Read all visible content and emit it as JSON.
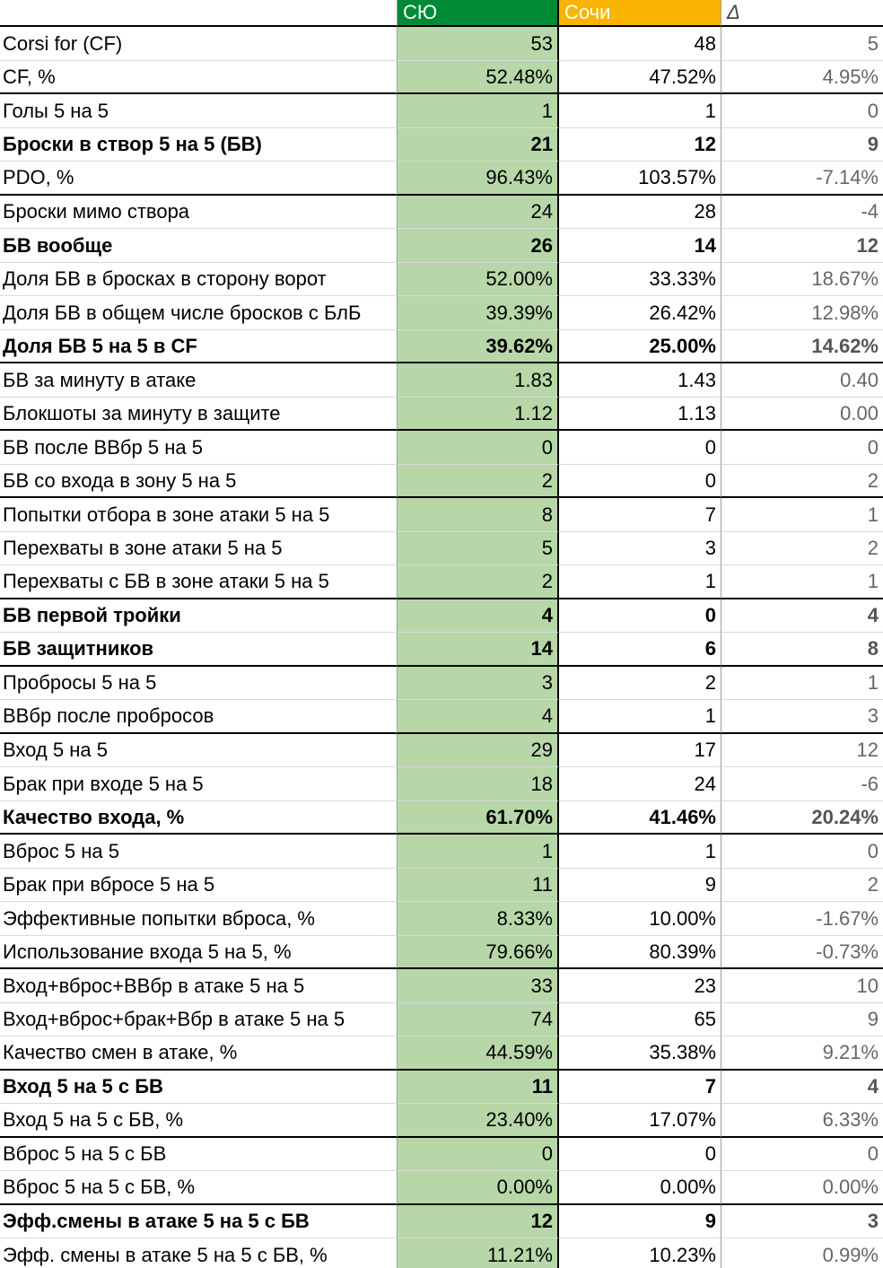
{
  "header": {
    "blank": "",
    "team1": "СЮ",
    "team2": "Сочи",
    "delta": "Δ"
  },
  "rows": [
    {
      "label": "Corsi for (CF)",
      "v1": "53",
      "v2": "48",
      "d": "5",
      "bold": false,
      "sep": false
    },
    {
      "label": "CF, %",
      "v1": "52.48%",
      "v2": "47.52%",
      "d": "4.95%",
      "bold": false,
      "sep": true
    },
    {
      "label": "Голы 5 на 5",
      "v1": "1",
      "v2": "1",
      "d": "0",
      "bold": false,
      "sep": false
    },
    {
      "label": "Броски в створ 5 на 5 (БВ)",
      "v1": "21",
      "v2": "12",
      "d": "9",
      "bold": true,
      "sep": false
    },
    {
      "label": "PDO, %",
      "v1": "96.43%",
      "v2": "103.57%",
      "d": "-7.14%",
      "bold": false,
      "sep": true
    },
    {
      "label": "Броски мимо створа",
      "v1": "24",
      "v2": "28",
      "d": "-4",
      "bold": false,
      "sep": false
    },
    {
      "label": "БВ вообще",
      "v1": "26",
      "v2": "14",
      "d": "12",
      "bold": true,
      "sep": false
    },
    {
      "label": "Доля БВ в бросках в сторону ворот",
      "v1": "52.00%",
      "v2": "33.33%",
      "d": "18.67%",
      "bold": false,
      "sep": false
    },
    {
      "label": "Доля БВ в общем числе бросков с БлБ",
      "v1": "39.39%",
      "v2": "26.42%",
      "d": "12.98%",
      "bold": false,
      "sep": false
    },
    {
      "label": "Доля БВ 5 на 5 в CF",
      "v1": "39.62%",
      "v2": "25.00%",
      "d": "14.62%",
      "bold": true,
      "sep": true
    },
    {
      "label": "БВ за минуту в атаке",
      "v1": "1.83",
      "v2": "1.43",
      "d": "0.40",
      "bold": false,
      "sep": false
    },
    {
      "label": "Блокшоты за минуту в защите",
      "v1": "1.12",
      "v2": "1.13",
      "d": "0.00",
      "bold": false,
      "sep": true
    },
    {
      "label": "БВ после ВВбр 5 на 5",
      "v1": "0",
      "v2": "0",
      "d": "0",
      "bold": false,
      "sep": false
    },
    {
      "label": "БВ со входа в зону 5 на 5",
      "v1": "2",
      "v2": "0",
      "d": "2",
      "bold": false,
      "sep": true
    },
    {
      "label": "Попытки отбора в зоне атаки 5 на 5",
      "v1": "8",
      "v2": "7",
      "d": "1",
      "bold": false,
      "sep": false
    },
    {
      "label": "Перехваты в зоне атаки 5 на 5",
      "v1": "5",
      "v2": "3",
      "d": "2",
      "bold": false,
      "sep": false
    },
    {
      "label": "Перехваты с БВ в зоне атаки 5 на 5",
      "v1": "2",
      "v2": "1",
      "d": "1",
      "bold": false,
      "sep": true
    },
    {
      "label": "БВ первой тройки",
      "v1": "4",
      "v2": "0",
      "d": "4",
      "bold": true,
      "sep": false
    },
    {
      "label": "БВ защитников",
      "v1": "14",
      "v2": "6",
      "d": "8",
      "bold": true,
      "sep": true
    },
    {
      "label": "Пробросы 5 на 5",
      "v1": "3",
      "v2": "2",
      "d": "1",
      "bold": false,
      "sep": false
    },
    {
      "label": "ВВбр после пробросов",
      "v1": "4",
      "v2": "1",
      "d": "3",
      "bold": false,
      "sep": true
    },
    {
      "label": "Вход 5 на 5",
      "v1": "29",
      "v2": "17",
      "d": "12",
      "bold": false,
      "sep": false
    },
    {
      "label": "Брак при входе 5 на 5",
      "v1": "18",
      "v2": "24",
      "d": "-6",
      "bold": false,
      "sep": false
    },
    {
      "label": "Качество входа, %",
      "v1": "61.70%",
      "v2": "41.46%",
      "d": "20.24%",
      "bold": true,
      "sep": true
    },
    {
      "label": "Вброс 5 на 5",
      "v1": "1",
      "v2": "1",
      "d": "0",
      "bold": false,
      "sep": false
    },
    {
      "label": "Брак при вбросе 5 на 5",
      "v1": "11",
      "v2": "9",
      "d": "2",
      "bold": false,
      "sep": false
    },
    {
      "label": "Эффективные попытки вброса, %",
      "v1": "8.33%",
      "v2": "10.00%",
      "d": "-1.67%",
      "bold": false,
      "sep": false
    },
    {
      "label": "Использование входа 5 на 5, %",
      "v1": "79.66%",
      "v2": "80.39%",
      "d": "-0.73%",
      "bold": false,
      "sep": true
    },
    {
      "label": "Вход+вброс+ВВбр в атаке 5 на 5",
      "v1": "33",
      "v2": "23",
      "d": "10",
      "bold": false,
      "sep": false
    },
    {
      "label": "Вход+вброс+брак+Вбр в атаке 5 на 5",
      "v1": "74",
      "v2": "65",
      "d": "9",
      "bold": false,
      "sep": false
    },
    {
      "label": "Качество смен в атаке, %",
      "v1": "44.59%",
      "v2": "35.38%",
      "d": "9.21%",
      "bold": false,
      "sep": true
    },
    {
      "label": "Вход 5 на 5 с БВ",
      "v1": "11",
      "v2": "7",
      "d": "4",
      "bold": true,
      "sep": false
    },
    {
      "label": "Вход 5 на 5 с БВ, %",
      "v1": "23.40%",
      "v2": "17.07%",
      "d": "6.33%",
      "bold": false,
      "sep": true
    },
    {
      "label": "Вброс 5 на 5 с БВ",
      "v1": "0",
      "v2": "0",
      "d": "0",
      "bold": false,
      "sep": false
    },
    {
      "label": "Вброс 5 на 5 с БВ, %",
      "v1": "0.00%",
      "v2": "0.00%",
      "d": "0.00%",
      "bold": false,
      "sep": true
    },
    {
      "label": "Эфф.смены в атаке 5 на 5 с БВ",
      "v1": "12",
      "v2": "9",
      "d": "3",
      "bold": true,
      "sep": false
    },
    {
      "label": "Эфф. смены в атаке 5 на 5 с БВ, %",
      "v1": "11.21%",
      "v2": "10.23%",
      "d": "0.99%",
      "bold": false,
      "sep": false
    }
  ]
}
